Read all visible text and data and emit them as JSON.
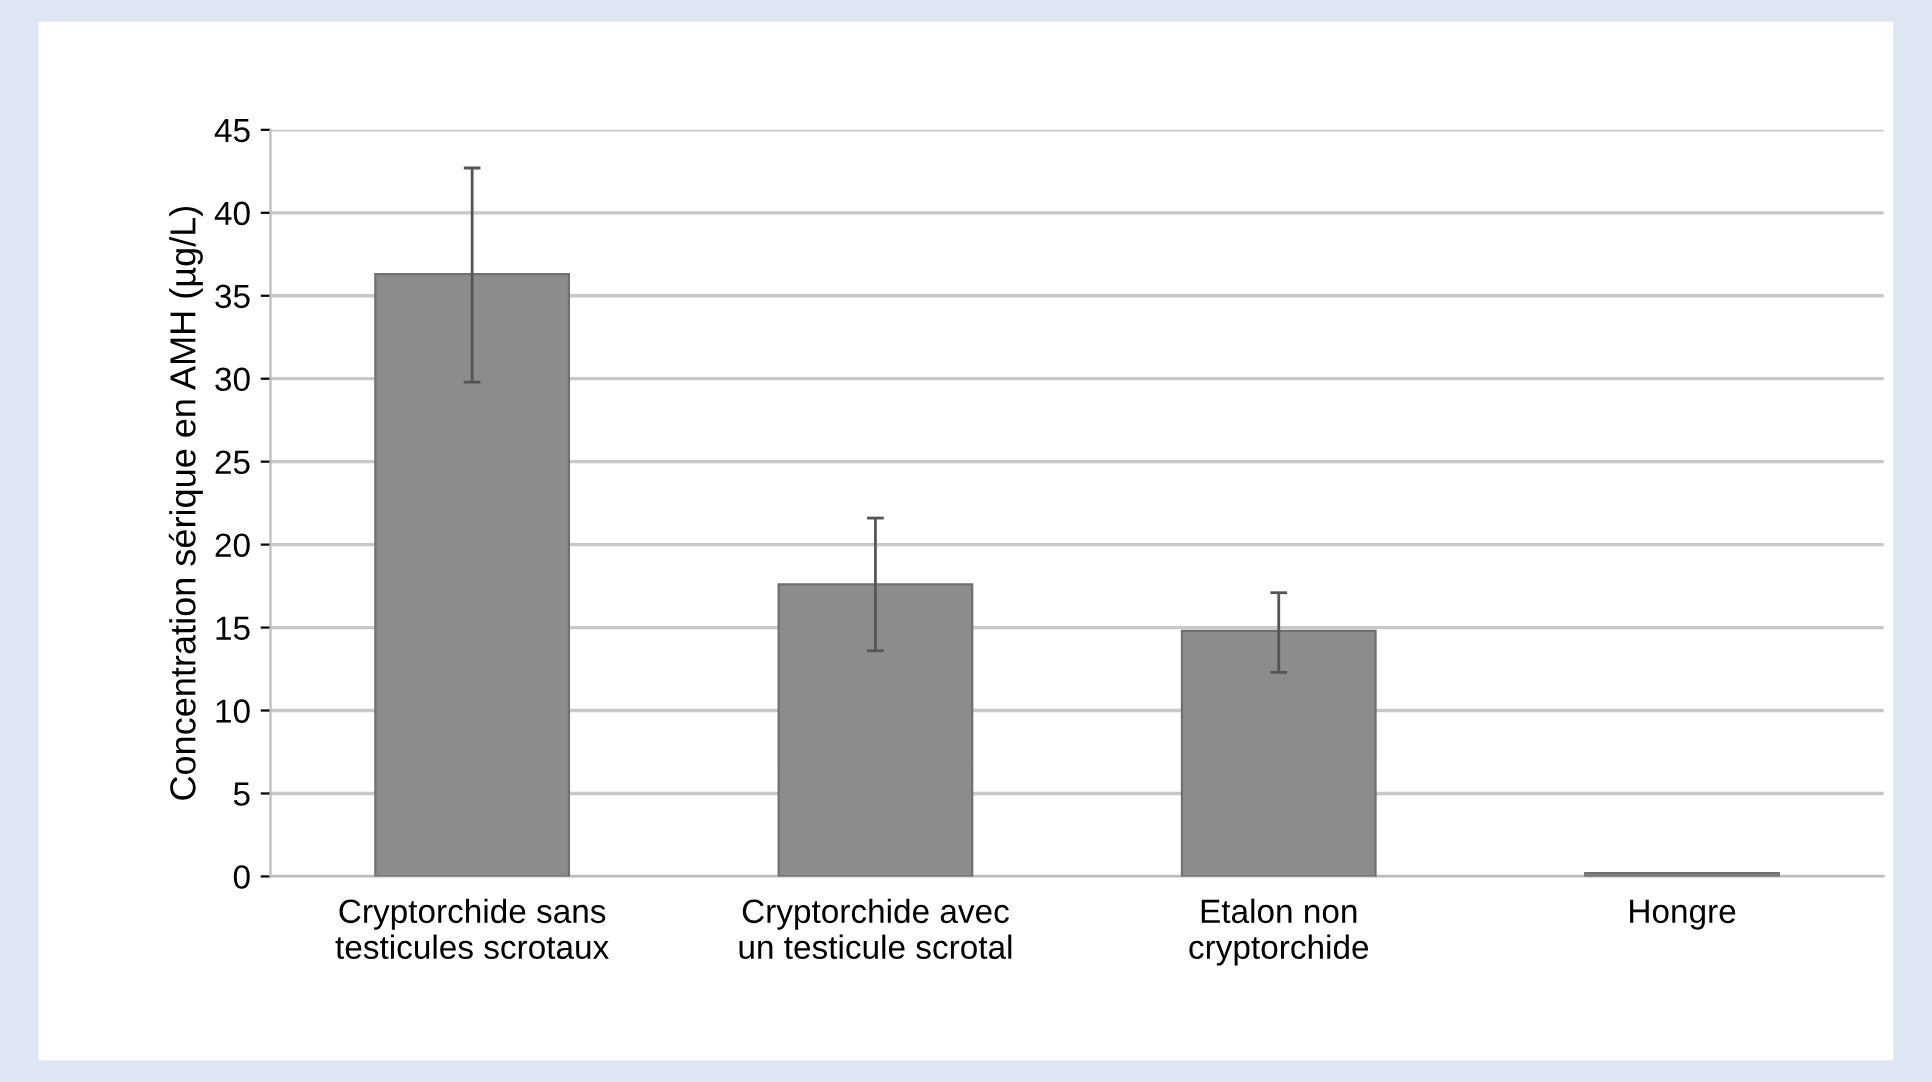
{
  "chart_data": {
    "type": "bar",
    "ylabel": "Concentration sérique en AMH (µg/L)",
    "categories": [
      "Cryptorchide sans\ntesticules scrotaux",
      "Cryptorchide avec\nun testicule scrotal",
      "Etalon non\ncryptorchide",
      "Hongre"
    ],
    "values": [
      36.3,
      17.6,
      14.8,
      0.2
    ],
    "errors": [
      [
        29.8,
        42.7
      ],
      [
        13.6,
        21.6
      ],
      [
        12.3,
        17.1
      ],
      null
    ],
    "color": "#8c8c8c",
    "ylim": [
      0,
      45
    ],
    "yticks": [
      0,
      5,
      10,
      15,
      20,
      25,
      30,
      35,
      40,
      45
    ],
    "grid": "y",
    "legend": false
  }
}
